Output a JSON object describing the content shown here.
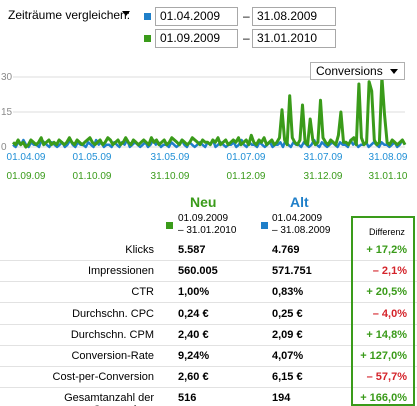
{
  "header": {
    "compare_label": "Zeiträume vergleichen:",
    "range_a": {
      "start": "01.04.2009",
      "end": "31.08.2009",
      "color": "#1f7fc9"
    },
    "range_b": {
      "start": "01.09.2009",
      "end": "31.01.2010",
      "color": "#3a9b1a"
    },
    "dash": "–"
  },
  "metric_select": {
    "value": "Conversions"
  },
  "chart_data": {
    "type": "line",
    "title": "",
    "ylabel": "",
    "ylim": [
      0,
      30
    ],
    "yticks": [
      0,
      15,
      30
    ],
    "grid": true,
    "xticks_a": [
      "01.04.09",
      "01.05.09",
      "31.05.09",
      "01.07.09",
      "31.07.09",
      "31.08.09"
    ],
    "xticks_b": [
      "01.09.09",
      "01.10.09",
      "31.10.09",
      "01.12.09",
      "31.12.09",
      "31.01.10"
    ],
    "series": [
      {
        "color": "#1f7fc9",
        "values": [
          1,
          0,
          2,
          1,
          3,
          1,
          0,
          2,
          1,
          1,
          0,
          3,
          2,
          1,
          0,
          2,
          1,
          0,
          1,
          2,
          0,
          1,
          3,
          1,
          0,
          2,
          1,
          1,
          0,
          2,
          1,
          0,
          3,
          1,
          2,
          0,
          1,
          1,
          0,
          2,
          1,
          0,
          2,
          1,
          3,
          0,
          1,
          2,
          1,
          0,
          1,
          2,
          0,
          1,
          3,
          1,
          2,
          0,
          1,
          1,
          0,
          2,
          1,
          0,
          1,
          3,
          1,
          0,
          2,
          1,
          0,
          1,
          2,
          1,
          0,
          2,
          1,
          3,
          0,
          1,
          2,
          1,
          0,
          1,
          1,
          2,
          0,
          1,
          3,
          1,
          0,
          2,
          1,
          1,
          0,
          2,
          1,
          0,
          1,
          2,
          0,
          1,
          1,
          2,
          0,
          3,
          1,
          0,
          2,
          1,
          1,
          0,
          2,
          1,
          0,
          1,
          3,
          1,
          0,
          2,
          1,
          0,
          1,
          2,
          1,
          0,
          2,
          1,
          1,
          0,
          3,
          1,
          2,
          0,
          1,
          1,
          2,
          0,
          1,
          2,
          1,
          0,
          2,
          1,
          1,
          0,
          1,
          2,
          0,
          1,
          3,
          1
        ]
      },
      {
        "color": "#3a9b1a",
        "values": [
          2,
          1,
          3,
          1,
          2,
          0,
          1,
          3,
          2,
          1,
          2,
          4,
          1,
          2,
          3,
          1,
          2,
          1,
          3,
          2,
          1,
          2,
          4,
          2,
          1,
          3,
          2,
          1,
          2,
          3,
          4,
          2,
          1,
          2,
          3,
          1,
          2,
          4,
          3,
          1,
          2,
          3,
          1,
          2,
          4,
          2,
          1,
          3,
          2,
          1,
          2,
          3,
          2,
          1,
          4,
          2,
          3,
          1,
          2,
          3,
          1,
          2,
          4,
          3,
          2,
          1,
          3,
          2,
          1,
          2,
          4,
          3,
          2,
          1,
          3,
          2,
          2,
          1,
          3,
          2,
          4,
          1,
          2,
          3,
          1,
          2,
          3,
          2,
          4,
          1,
          2,
          3,
          1,
          5,
          2,
          1,
          3,
          2,
          4,
          1,
          2,
          3,
          1,
          2,
          4,
          16,
          3,
          1,
          22,
          4,
          2,
          1,
          3,
          18,
          2,
          1,
          12,
          3,
          1,
          2,
          20,
          4,
          2,
          1,
          3,
          2,
          1,
          5,
          15,
          2,
          2,
          1,
          3,
          4,
          1,
          27,
          4,
          1,
          2,
          28,
          24,
          3,
          1,
          2,
          30,
          14,
          2,
          1,
          3,
          2,
          1,
          2,
          3,
          1
        ]
      }
    ]
  },
  "table": {
    "col_new": {
      "label": "Neu",
      "range_line1": "01.09.2009",
      "range_line2": "– 31.01.2010"
    },
    "col_old": {
      "label": "Alt",
      "range_line1": "01.04.2009",
      "range_line2": "– 31.08.2009"
    },
    "diff_label": "Differenz",
    "rows": [
      {
        "label": "Klicks",
        "new": "5.587",
        "old": "4.769",
        "diff": "+ 17,2%",
        "dir": "pos"
      },
      {
        "label": "Impressionen",
        "new": "560.005",
        "old": "571.751",
        "diff": "– 2,1%",
        "dir": "neg"
      },
      {
        "label": "CTR",
        "new": "1,00%",
        "old": "0,83%",
        "diff": "+ 20,5%",
        "dir": "pos"
      },
      {
        "label": "Durchschn. CPC",
        "new": "0,24 €",
        "old": "0,25 €",
        "diff": "– 4,0%",
        "dir": "neg"
      },
      {
        "label": "Durchschn. CPM",
        "new": "2,40 €",
        "old": "2,09 €",
        "diff": "+ 14,8%",
        "dir": "pos"
      },
      {
        "label": "Conversion-Rate",
        "new": "9,24%",
        "old": "4,07%",
        "diff": "+ 127,0%",
        "dir": "pos"
      },
      {
        "label": "Cost-per-Conversion",
        "new": "2,60 €",
        "old": "6,15 €",
        "diff": "– 57,7%",
        "dir": "neg"
      },
      {
        "label": "Gesamtanzahl der Conversions",
        "new": "516",
        "old": "194",
        "diff": "+ 166,0%",
        "dir": "pos"
      }
    ]
  }
}
